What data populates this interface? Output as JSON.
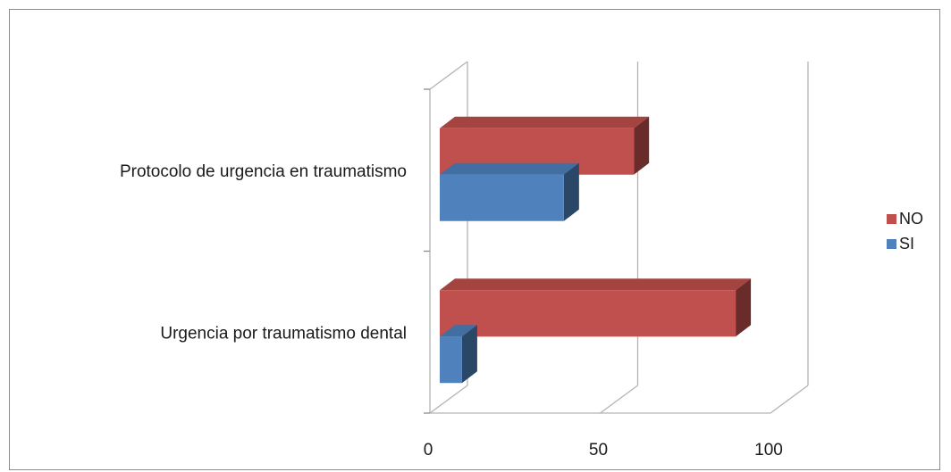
{
  "chart_data": {
    "type": "bar",
    "orientation": "horizontal",
    "categories": [
      "Urgencia por traumatismo dental",
      "Protocolo de urgencia en traumatismo"
    ],
    "series": [
      {
        "name": "SI",
        "values": [
          7,
          39
        ],
        "color": "#4f81bd"
      },
      {
        "name": "NO",
        "values": [
          93,
          61
        ],
        "color": "#c0504d"
      }
    ],
    "xlim": [
      0,
      100
    ],
    "xticks": [
      "0",
      "50",
      "100"
    ],
    "title": "",
    "xlabel": "",
    "ylabel": "",
    "grid": true,
    "legend_position": "right",
    "style": "3d"
  }
}
